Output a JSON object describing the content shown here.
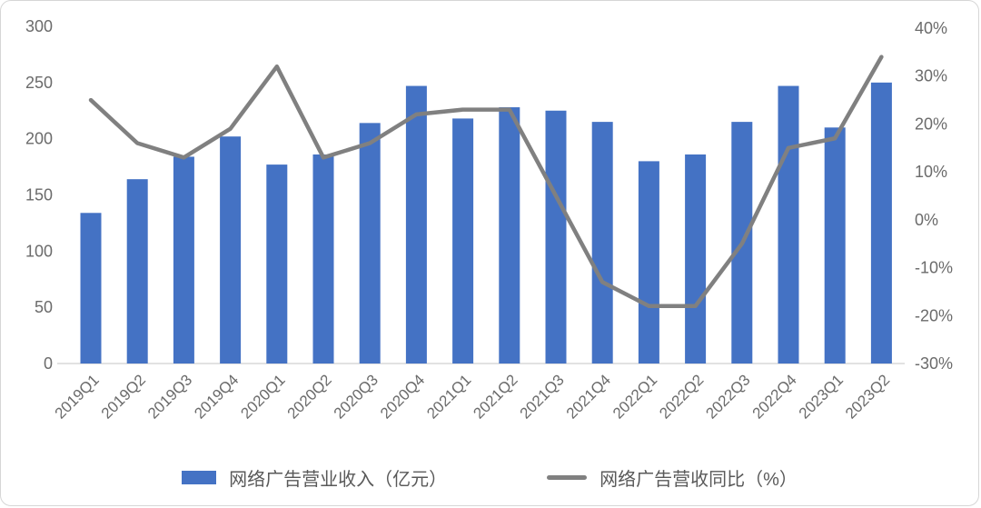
{
  "chart_data": {
    "type": "bar+line combo",
    "categories": [
      "2019Q1",
      "2019Q2",
      "2019Q3",
      "2019Q4",
      "2020Q1",
      "2020Q2",
      "2020Q3",
      "2020Q4",
      "2021Q1",
      "2021Q2",
      "2021Q3",
      "2021Q4",
      "2022Q1",
      "2022Q2",
      "2022Q3",
      "2022Q4",
      "2023Q1",
      "2023Q2"
    ],
    "series": [
      {
        "name": "网络广告营业收入（亿元）",
        "type": "bar",
        "axis": "left",
        "color": "#4472C4",
        "values": [
          134,
          164,
          184,
          202,
          177,
          186,
          214,
          247,
          218,
          228,
          225,
          215,
          180,
          186,
          215,
          247,
          210,
          250
        ]
      },
      {
        "name": "网络广告营收同比（%）",
        "type": "line",
        "axis": "right",
        "color": "#808080",
        "values": [
          25,
          16,
          13,
          19,
          32,
          13,
          16,
          22,
          23,
          23,
          5,
          -13,
          -18,
          -18,
          -5,
          15,
          17,
          34
        ]
      }
    ],
    "left_axis": {
      "min": 0,
      "max": 300,
      "step": 50,
      "ticks": [
        "0",
        "50",
        "100",
        "150",
        "200",
        "250",
        "300"
      ]
    },
    "right_axis": {
      "min": -30,
      "max": 40,
      "step": 10,
      "ticks": [
        "-30%",
        "-20%",
        "-10%",
        "0%",
        "10%",
        "20%",
        "30%",
        "40%"
      ]
    },
    "grid": false,
    "legend_position": "bottom",
    "axis_line_color": "#d9d9d9"
  },
  "legend": {
    "items": [
      {
        "label": "网络广告营业收入（亿元）",
        "swatch": "bar",
        "color": "#4472C4"
      },
      {
        "label": "网络广告营收同比（%）",
        "swatch": "line",
        "color": "#808080"
      }
    ]
  }
}
